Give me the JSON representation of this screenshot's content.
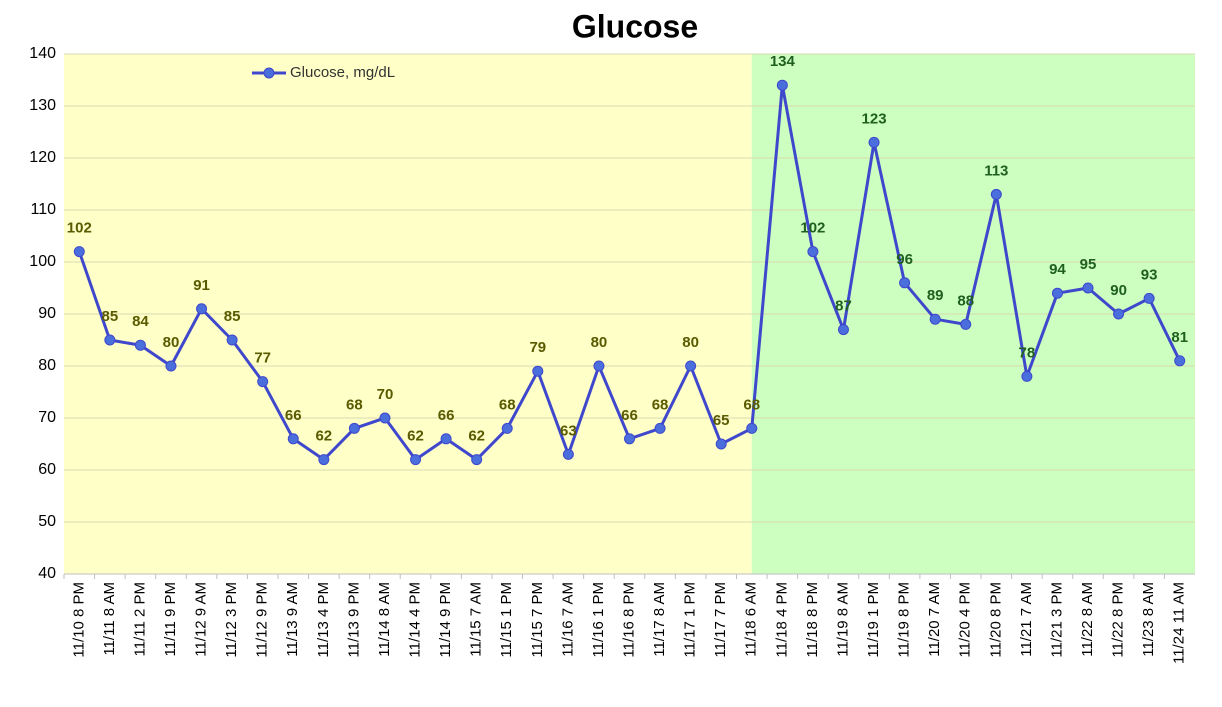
{
  "chart_data": {
    "type": "line",
    "title": "Glucose",
    "categories": [
      "11/10 8 PM",
      "11/11 8 AM",
      "11/11 2 PM",
      "11/11 9 PM",
      "11/12 9 AM",
      "11/12 3 PM",
      "11/12 9 PM",
      "11/13 9 AM",
      "11/13 4 PM",
      "11/13 9 PM",
      "11/14 8 AM",
      "11/14 4 PM",
      "11/14 9 PM",
      "11/15 7 AM",
      "11/15 1 PM",
      "11/15 7 PM",
      "11/16 7 AM",
      "11/16 1 PM",
      "11/16 8 PM",
      "11/17 8 AM",
      "11/17 1 PM",
      "11/17 7 PM",
      "11/18 6 AM",
      "11/18 4 PM",
      "11/18 8 PM",
      "11/19 8 AM",
      "11/19 1 PM",
      "11/19 8 PM",
      "11/20 7 AM",
      "11/20 4 PM",
      "11/20 8 PM",
      "11/21 7 AM",
      "11/21 3 PM",
      "11/22 8 AM",
      "11/22 8 PM",
      "11/23 8 AM",
      "11/24 11 AM"
    ],
    "series": [
      {
        "name": "Glucose, mg/dL",
        "color": "#3f48cc",
        "marker_color": "#4a6fdc",
        "values": [
          102,
          85,
          84,
          80,
          91,
          85,
          77,
          66,
          62,
          68,
          70,
          62,
          66,
          62,
          68,
          79,
          63,
          80,
          66,
          68,
          80,
          65,
          68,
          134,
          102,
          87,
          123,
          96,
          89,
          88,
          113,
          78,
          94,
          95,
          90,
          93,
          81
        ]
      }
    ],
    "ylim": [
      40,
      140
    ],
    "yticks": [
      40,
      50,
      60,
      70,
      80,
      90,
      100,
      110,
      120,
      130,
      140
    ],
    "grid": true,
    "legend": "top-left",
    "background_bands": [
      {
        "start": "11/10 8 PM",
        "end": "11/18 6 AM",
        "color": "#ffffc8",
        "label_color": "#5a5a00"
      },
      {
        "start": "11/18 6 AM",
        "end": "11/24 11 AM",
        "color": "#ccffc0",
        "label_color": "#1f5f1f"
      }
    ]
  }
}
